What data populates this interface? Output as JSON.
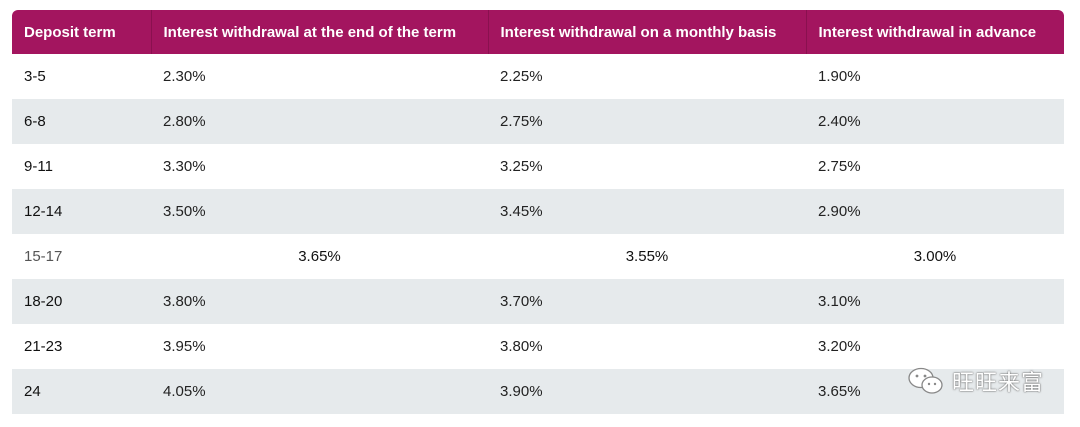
{
  "table": {
    "headers": [
      "Deposit term",
      "Interest withdrawal at the end of the term",
      "Interest withdrawal on a monthly basis",
      "Interest withdrawal in advance"
    ],
    "rows": [
      [
        "3-5",
        "2.30%",
        "2.25%",
        "1.90%"
      ],
      [
        "6-8",
        "2.80%",
        "2.75%",
        "2.40%"
      ],
      [
        "9-11",
        "3.30%",
        "3.25%",
        "2.75%"
      ],
      [
        "12-14",
        "3.50%",
        "3.45%",
        "2.90%"
      ],
      [
        "15-17",
        "3.65%",
        "3.55%",
        "3.00%"
      ],
      [
        "18-20",
        "3.80%",
        "3.70%",
        "3.10%"
      ],
      [
        "21-23",
        "3.95%",
        "3.80%",
        "3.20%"
      ],
      [
        "24",
        "4.05%",
        "3.90%",
        "3.65%"
      ]
    ]
  },
  "watermark": {
    "text": "旺旺来富",
    "icon": "wechat-icon"
  },
  "colors": {
    "header_bg": "#a3155f",
    "header_text": "#ffffff",
    "alt_row_bg": "#e6eaec"
  }
}
